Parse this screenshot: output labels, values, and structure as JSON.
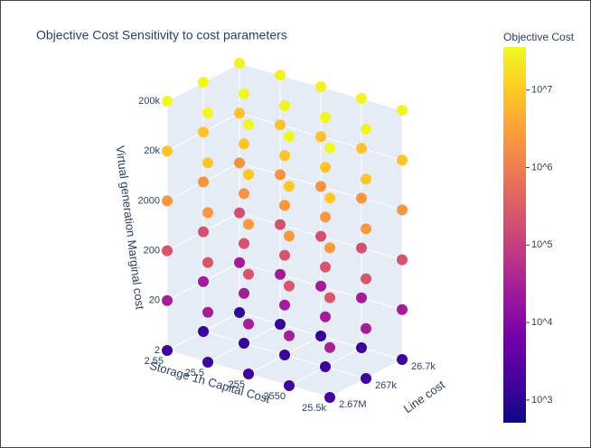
{
  "chart_data": {
    "type": "scatter3d",
    "title": "Objective Cost Sensitivity to cost parameters",
    "xlabel": "Storage 1h Capital Cost",
    "ylabel": "Line cost",
    "zlabel": "Virtual generation Marginal cost",
    "colorbar_title": "Objective Cost",
    "xlog": true,
    "ylog": true,
    "zlog": true,
    "clog": true,
    "xlim": [
      2.55,
      25500
    ],
    "ylim": [
      26700,
      2670000
    ],
    "zlim": [
      2,
      200000
    ],
    "clim": [
      510,
      36000000
    ],
    "xticks": [
      2.55,
      25.5,
      255,
      2550,
      {
        "value": 25500,
        "label": "25.5k"
      }
    ],
    "yticks": [
      {
        "value": 26700,
        "label": "26.7k"
      },
      {
        "value": 267000,
        "label": "267k"
      },
      {
        "value": 2670000,
        "label": "2.67M"
      }
    ],
    "zticks": [
      2,
      20,
      200,
      2000,
      {
        "value": 20000,
        "label": "20k"
      },
      {
        "value": 200000,
        "label": "200k"
      }
    ],
    "cticks": [
      {
        "value": 1000,
        "label": "10^3"
      },
      {
        "value": 10000,
        "label": "10^4"
      },
      {
        "value": 100000,
        "label": "10^5"
      },
      {
        "value": 1000000,
        "label": "10^6"
      },
      {
        "value": 10000000,
        "label": "10^7"
      }
    ],
    "colorscale": [
      "#0d0887",
      "#46039f",
      "#7201a8",
      "#9c179e",
      "#bd3786",
      "#d8576b",
      "#ed7953",
      "#fb9f3a",
      "#fdca26",
      "#f0f921"
    ],
    "x": [
      2.55,
      2.55,
      2.55,
      25.5,
      25.5,
      25.5,
      255,
      255,
      255,
      2550,
      2550,
      2550,
      25500,
      25500,
      25500,
      2.55,
      2.55,
      2.55,
      25.5,
      25.5,
      25.5,
      255,
      255,
      255,
      2550,
      2550,
      2550,
      25500,
      25500,
      25500,
      2.55,
      2.55,
      2.55,
      25.5,
      25.5,
      25.5,
      255,
      255,
      255,
      2550,
      2550,
      2550,
      25500,
      25500,
      25500,
      2.55,
      2.55,
      2.55,
      25.5,
      25.5,
      25.5,
      255,
      255,
      255,
      2550,
      2550,
      2550,
      25500,
      25500,
      25500,
      2.55,
      2.55,
      2.55,
      25.5,
      25.5,
      25.5,
      255,
      255,
      255,
      2550,
      2550,
      2550,
      25500,
      25500,
      25500,
      2.55,
      2.55,
      2.55,
      25.5,
      25.5,
      25.5,
      255,
      255,
      255,
      2550,
      2550,
      2550,
      25500,
      25500,
      25500
    ],
    "y": [
      26700,
      267000,
      2670000,
      26700,
      267000,
      2670000,
      26700,
      267000,
      2670000,
      26700,
      267000,
      2670000,
      26700,
      267000,
      2670000,
      26700,
      267000,
      2670000,
      26700,
      267000,
      2670000,
      26700,
      267000,
      2670000,
      26700,
      267000,
      2670000,
      26700,
      267000,
      2670000,
      26700,
      267000,
      2670000,
      26700,
      267000,
      2670000,
      26700,
      267000,
      2670000,
      26700,
      267000,
      2670000,
      26700,
      267000,
      2670000,
      26700,
      267000,
      2670000,
      26700,
      267000,
      2670000,
      26700,
      267000,
      2670000,
      26700,
      267000,
      2670000,
      26700,
      267000,
      2670000,
      26700,
      267000,
      2670000,
      26700,
      267000,
      2670000,
      26700,
      267000,
      2670000,
      26700,
      267000,
      2670000,
      26700,
      267000,
      2670000,
      26700,
      267000,
      2670000,
      26700,
      267000,
      2670000,
      26700,
      267000,
      2670000,
      26700,
      267000,
      2670000,
      26700,
      267000,
      2670000
    ],
    "z": [
      2,
      2,
      2,
      2,
      2,
      2,
      2,
      2,
      2,
      2,
      2,
      2,
      2,
      2,
      2,
      20,
      20,
      20,
      20,
      20,
      20,
      20,
      20,
      20,
      20,
      20,
      20,
      20,
      20,
      20,
      200,
      200,
      200,
      200,
      200,
      200,
      200,
      200,
      200,
      200,
      200,
      200,
      200,
      200,
      200,
      2000,
      2000,
      2000,
      2000,
      2000,
      2000,
      2000,
      2000,
      2000,
      2000,
      2000,
      2000,
      2000,
      2000,
      2000,
      20000,
      20000,
      20000,
      20000,
      20000,
      20000,
      20000,
      20000,
      20000,
      20000,
      20000,
      20000,
      20000,
      20000,
      20000,
      200000,
      200000,
      200000,
      200000,
      200000,
      200000,
      200000,
      200000,
      200000,
      200000,
      200000,
      200000,
      200000,
      200000,
      200000
    ],
    "color_values": [
      1200,
      1300,
      1500,
      1200,
      1300,
      1500,
      1200,
      1350,
      1500,
      1250,
      1400,
      1600,
      1300,
      1500,
      1700,
      25000,
      26000,
      28000,
      25000,
      26000,
      28000,
      25000,
      27000,
      29000,
      26000,
      28000,
      30000,
      27000,
      29000,
      32000,
      200000,
      210000,
      230000,
      200000,
      210000,
      230000,
      200000,
      220000,
      240000,
      210000,
      230000,
      250000,
      220000,
      240000,
      260000,
      2000000,
      2100000,
      2300000,
      2000000,
      2100000,
      2300000,
      2000000,
      2200000,
      2400000,
      2100000,
      2300000,
      2500000,
      2200000,
      2400000,
      2600000,
      8000000,
      8400000,
      9000000,
      8000000,
      8400000,
      9000000,
      8000000,
      8600000,
      9200000,
      8200000,
      8800000,
      9500000,
      8500000,
      9000000,
      9800000,
      30000000,
      31000000,
      32000000,
      30000000,
      31000000,
      32000000,
      30000000,
      31500000,
      32500000,
      30500000,
      32000000,
      33000000,
      31000000,
      32500000,
      34000000
    ]
  }
}
